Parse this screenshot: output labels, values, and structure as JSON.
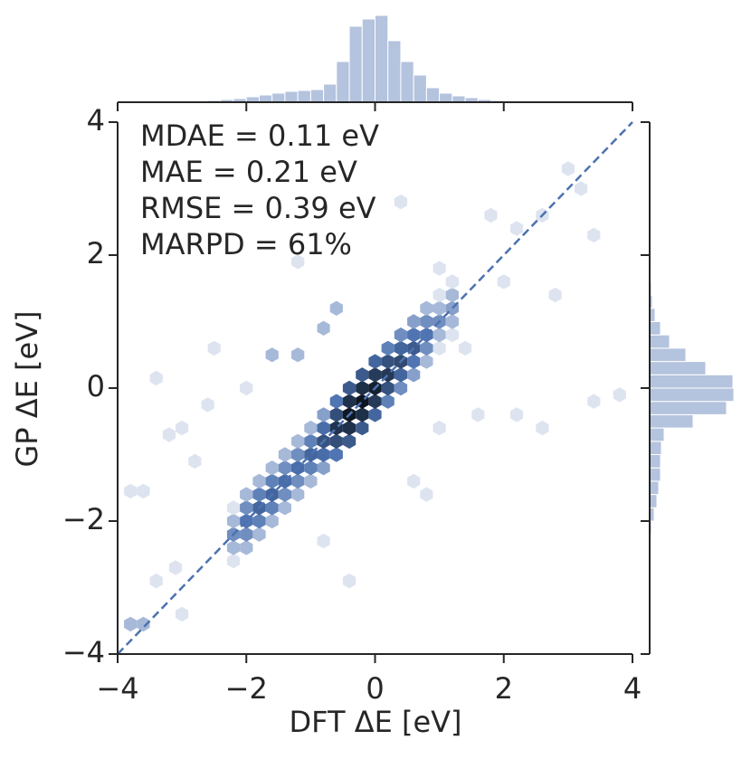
{
  "chart_data": {
    "type": "hexbin",
    "x_label": "DFT ΔE [eV]",
    "y_label": "GP ΔE [eV]",
    "annotations": [
      "MDAE = 0.11 eV",
      "MAE = 0.21 eV",
      "RMSE = 0.39 eV",
      "MARPD = 61%"
    ],
    "x": [
      -2.2,
      -2.2,
      -2.2,
      -2.2,
      -2.2,
      -2.0,
      -2.0,
      -2.0,
      -2.0,
      -2.0,
      -1.8,
      -1.8,
      -1.8,
      -1.8,
      -1.8,
      -1.6,
      -1.6,
      -1.6,
      -1.6,
      -1.6,
      -1.4,
      -1.4,
      -1.4,
      -1.4,
      -1.4,
      -1.2,
      -1.2,
      -1.2,
      -1.2,
      -1.2,
      -1.0,
      -1.0,
      -1.0,
      -1.0,
      -1.0,
      -0.8,
      -0.8,
      -0.8,
      -0.8,
      -0.8,
      -0.6,
      -0.6,
      -0.6,
      -0.6,
      -0.6,
      -0.4,
      -0.4,
      -0.4,
      -0.4,
      -0.4,
      -0.2,
      -0.2,
      -0.2,
      -0.2,
      -0.2,
      0,
      0,
      0,
      0,
      0,
      0.2,
      0.2,
      0.2,
      0.2,
      0.2,
      0.4,
      0.4,
      0.4,
      0.4,
      0.4,
      0.6,
      0.6,
      0.6,
      0.6,
      0.6,
      0.8,
      0.8,
      0.8,
      0.8,
      0.8,
      1.0,
      1.0,
      1.0,
      1.0,
      1.0,
      1.2,
      1.2,
      1.2,
      1.2,
      1.2,
      -3.8,
      -3.6,
      -3.4,
      -3.6,
      -3.8,
      -3.4,
      -3.2,
      -3.0,
      -2.6,
      -2.5,
      -2.8,
      -3.1,
      -3.0,
      -1.6,
      -1.2,
      -0.8,
      -1.2,
      -0.4,
      -0.8,
      0.6,
      1.0,
      1.4,
      2.0,
      2.2,
      2.6,
      3.2,
      3.4,
      2.8,
      1.8,
      3.8,
      3.4,
      2.2,
      2.6,
      1.6,
      0.4,
      -0.6,
      0.8,
      -2.0,
      3.0,
      1.0
    ],
    "y": [
      -2.6,
      -2.4,
      -2.2,
      -2.0,
      -1.8,
      -2.4,
      -2.2,
      -2.0,
      -1.8,
      -1.6,
      -2.2,
      -2.0,
      -1.8,
      -1.6,
      -1.4,
      -2.0,
      -1.8,
      -1.6,
      -1.4,
      -1.2,
      -1.8,
      -1.6,
      -1.4,
      -1.2,
      -1.0,
      -1.6,
      -1.4,
      -1.2,
      -1.0,
      -0.8,
      -1.4,
      -1.2,
      -1.0,
      -0.8,
      -0.6,
      -1.2,
      -1.0,
      -0.8,
      -0.6,
      -0.4,
      -1.0,
      -0.8,
      -0.6,
      -0.4,
      -0.2,
      -0.8,
      -0.6,
      -0.4,
      -0.2,
      0,
      -0.6,
      -0.4,
      -0.2,
      0,
      0.2,
      -0.4,
      -0.2,
      0,
      0.2,
      0.4,
      -0.2,
      0,
      0.2,
      0.4,
      0.6,
      0,
      0.2,
      0.4,
      0.6,
      0.8,
      0.2,
      0.4,
      0.6,
      0.8,
      1.0,
      0.4,
      0.6,
      0.8,
      1.0,
      1.2,
      0.6,
      0.8,
      1.0,
      1.2,
      1.4,
      0.8,
      1.0,
      1.2,
      1.4,
      1.6,
      -3.55,
      -3.55,
      -2.9,
      -1.55,
      -1.55,
      0.15,
      -0.7,
      -0.6,
      -0.25,
      0.6,
      -1.1,
      -2.7,
      -3.4,
      0.5,
      0.5,
      0.9,
      1.9,
      -2.9,
      -2.3,
      -1.4,
      -0.6,
      0.6,
      1.6,
      2.4,
      2.6,
      3.0,
      2.3,
      1.4,
      2.6,
      -0.1,
      -0.2,
      -0.4,
      -0.6,
      -0.4,
      2.8,
      1.2,
      -1.6,
      0.0,
      3.3,
      1.8
    ],
    "values": [
      1,
      2,
      4,
      2,
      1,
      2,
      4,
      6,
      4,
      2,
      2,
      5,
      8,
      5,
      2,
      2,
      5,
      8,
      5,
      2,
      2,
      4,
      7,
      4,
      2,
      2,
      4,
      7,
      4,
      2,
      2,
      5,
      8,
      5,
      2,
      3,
      7,
      12,
      7,
      3,
      6,
      13,
      22,
      13,
      6,
      10,
      23,
      38,
      23,
      10,
      10,
      24,
      40,
      24,
      10,
      8,
      19,
      32,
      19,
      8,
      5,
      12,
      20,
      12,
      5,
      4,
      8,
      14,
      8,
      4,
      3,
      6,
      10,
      6,
      3,
      2,
      4,
      6,
      4,
      2,
      1,
      2,
      4,
      2,
      1,
      1,
      2,
      3,
      2,
      1,
      2,
      2,
      1,
      1,
      1,
      1,
      1,
      1,
      1,
      1,
      1,
      1,
      1,
      2,
      2,
      2,
      1,
      1,
      1,
      1,
      1,
      1,
      1,
      1,
      1,
      1,
      1,
      1,
      1,
      1,
      1,
      1,
      1,
      1,
      1,
      2,
      1,
      1,
      1,
      1
    ],
    "cmap": [
      "#dde4f0",
      "#4c72b0",
      "#0d1520"
    ],
    "xlim": [
      -4,
      4
    ],
    "ylim": [
      -4,
      4
    ],
    "xticks": [
      {
        "value": -4,
        "label": "−4"
      },
      {
        "value": -2,
        "label": "−2"
      },
      0,
      2,
      4
    ],
    "yticks": [
      {
        "value": -4,
        "label": "−4"
      },
      {
        "value": -2,
        "label": "−2"
      },
      0,
      2,
      4
    ],
    "reference_line": {
      "x": [
        -4,
        4
      ],
      "y": [
        -4,
        4
      ],
      "color": "#4c72b0"
    },
    "x_hist": {
      "bins": [
        -4,
        -3.8,
        -3.6,
        -3.4,
        -3.2,
        -3,
        -2.8,
        -2.6,
        -2.4,
        -2.2,
        -2,
        -1.8,
        -1.6,
        -1.4,
        -1.2,
        -1,
        -0.8,
        -0.6,
        -0.4,
        -0.2,
        0,
        0.2,
        0.4,
        0.6,
        0.8,
        1,
        1.2,
        1.4,
        1.6,
        1.8,
        2,
        2.2,
        2.4,
        2.6,
        2.8,
        3,
        3.2,
        3.4,
        3.6,
        3.8,
        4
      ],
      "values": [
        0,
        0,
        0,
        0,
        0,
        1,
        1,
        2,
        3,
        4,
        6,
        8,
        10,
        12,
        13,
        14,
        20,
        45,
        84,
        92,
        96,
        68,
        45,
        30,
        16,
        10,
        7,
        5,
        3,
        2,
        1,
        1,
        0,
        0,
        0,
        0,
        0,
        0,
        0,
        0
      ],
      "color": "#b4c3de"
    },
    "y_hist": {
      "bins": [
        -4,
        -3.8,
        -3.6,
        -3.4,
        -3.2,
        -3,
        -2.8,
        -2.6,
        -2.4,
        -2.2,
        -2,
        -1.8,
        -1.6,
        -1.4,
        -1.2,
        -1,
        -0.8,
        -0.6,
        -0.4,
        -0.2,
        0,
        0.2,
        0.4,
        0.6,
        0.8,
        1,
        1.2,
        1.4,
        1.6,
        1.8,
        2,
        2.2,
        2.4,
        2.6,
        2.8,
        3,
        3.2,
        3.4,
        3.6,
        3.8,
        4
      ],
      "values": [
        0,
        0,
        0,
        0,
        0,
        0,
        0,
        0,
        0,
        2,
        5,
        8,
        10,
        12,
        12,
        13,
        16,
        48,
        85,
        93,
        92,
        62,
        40,
        22,
        12,
        6,
        3,
        2,
        1,
        0,
        0,
        0,
        0,
        0,
        0,
        0,
        0,
        0,
        0,
        0
      ],
      "color": "#b4c3de"
    }
  }
}
